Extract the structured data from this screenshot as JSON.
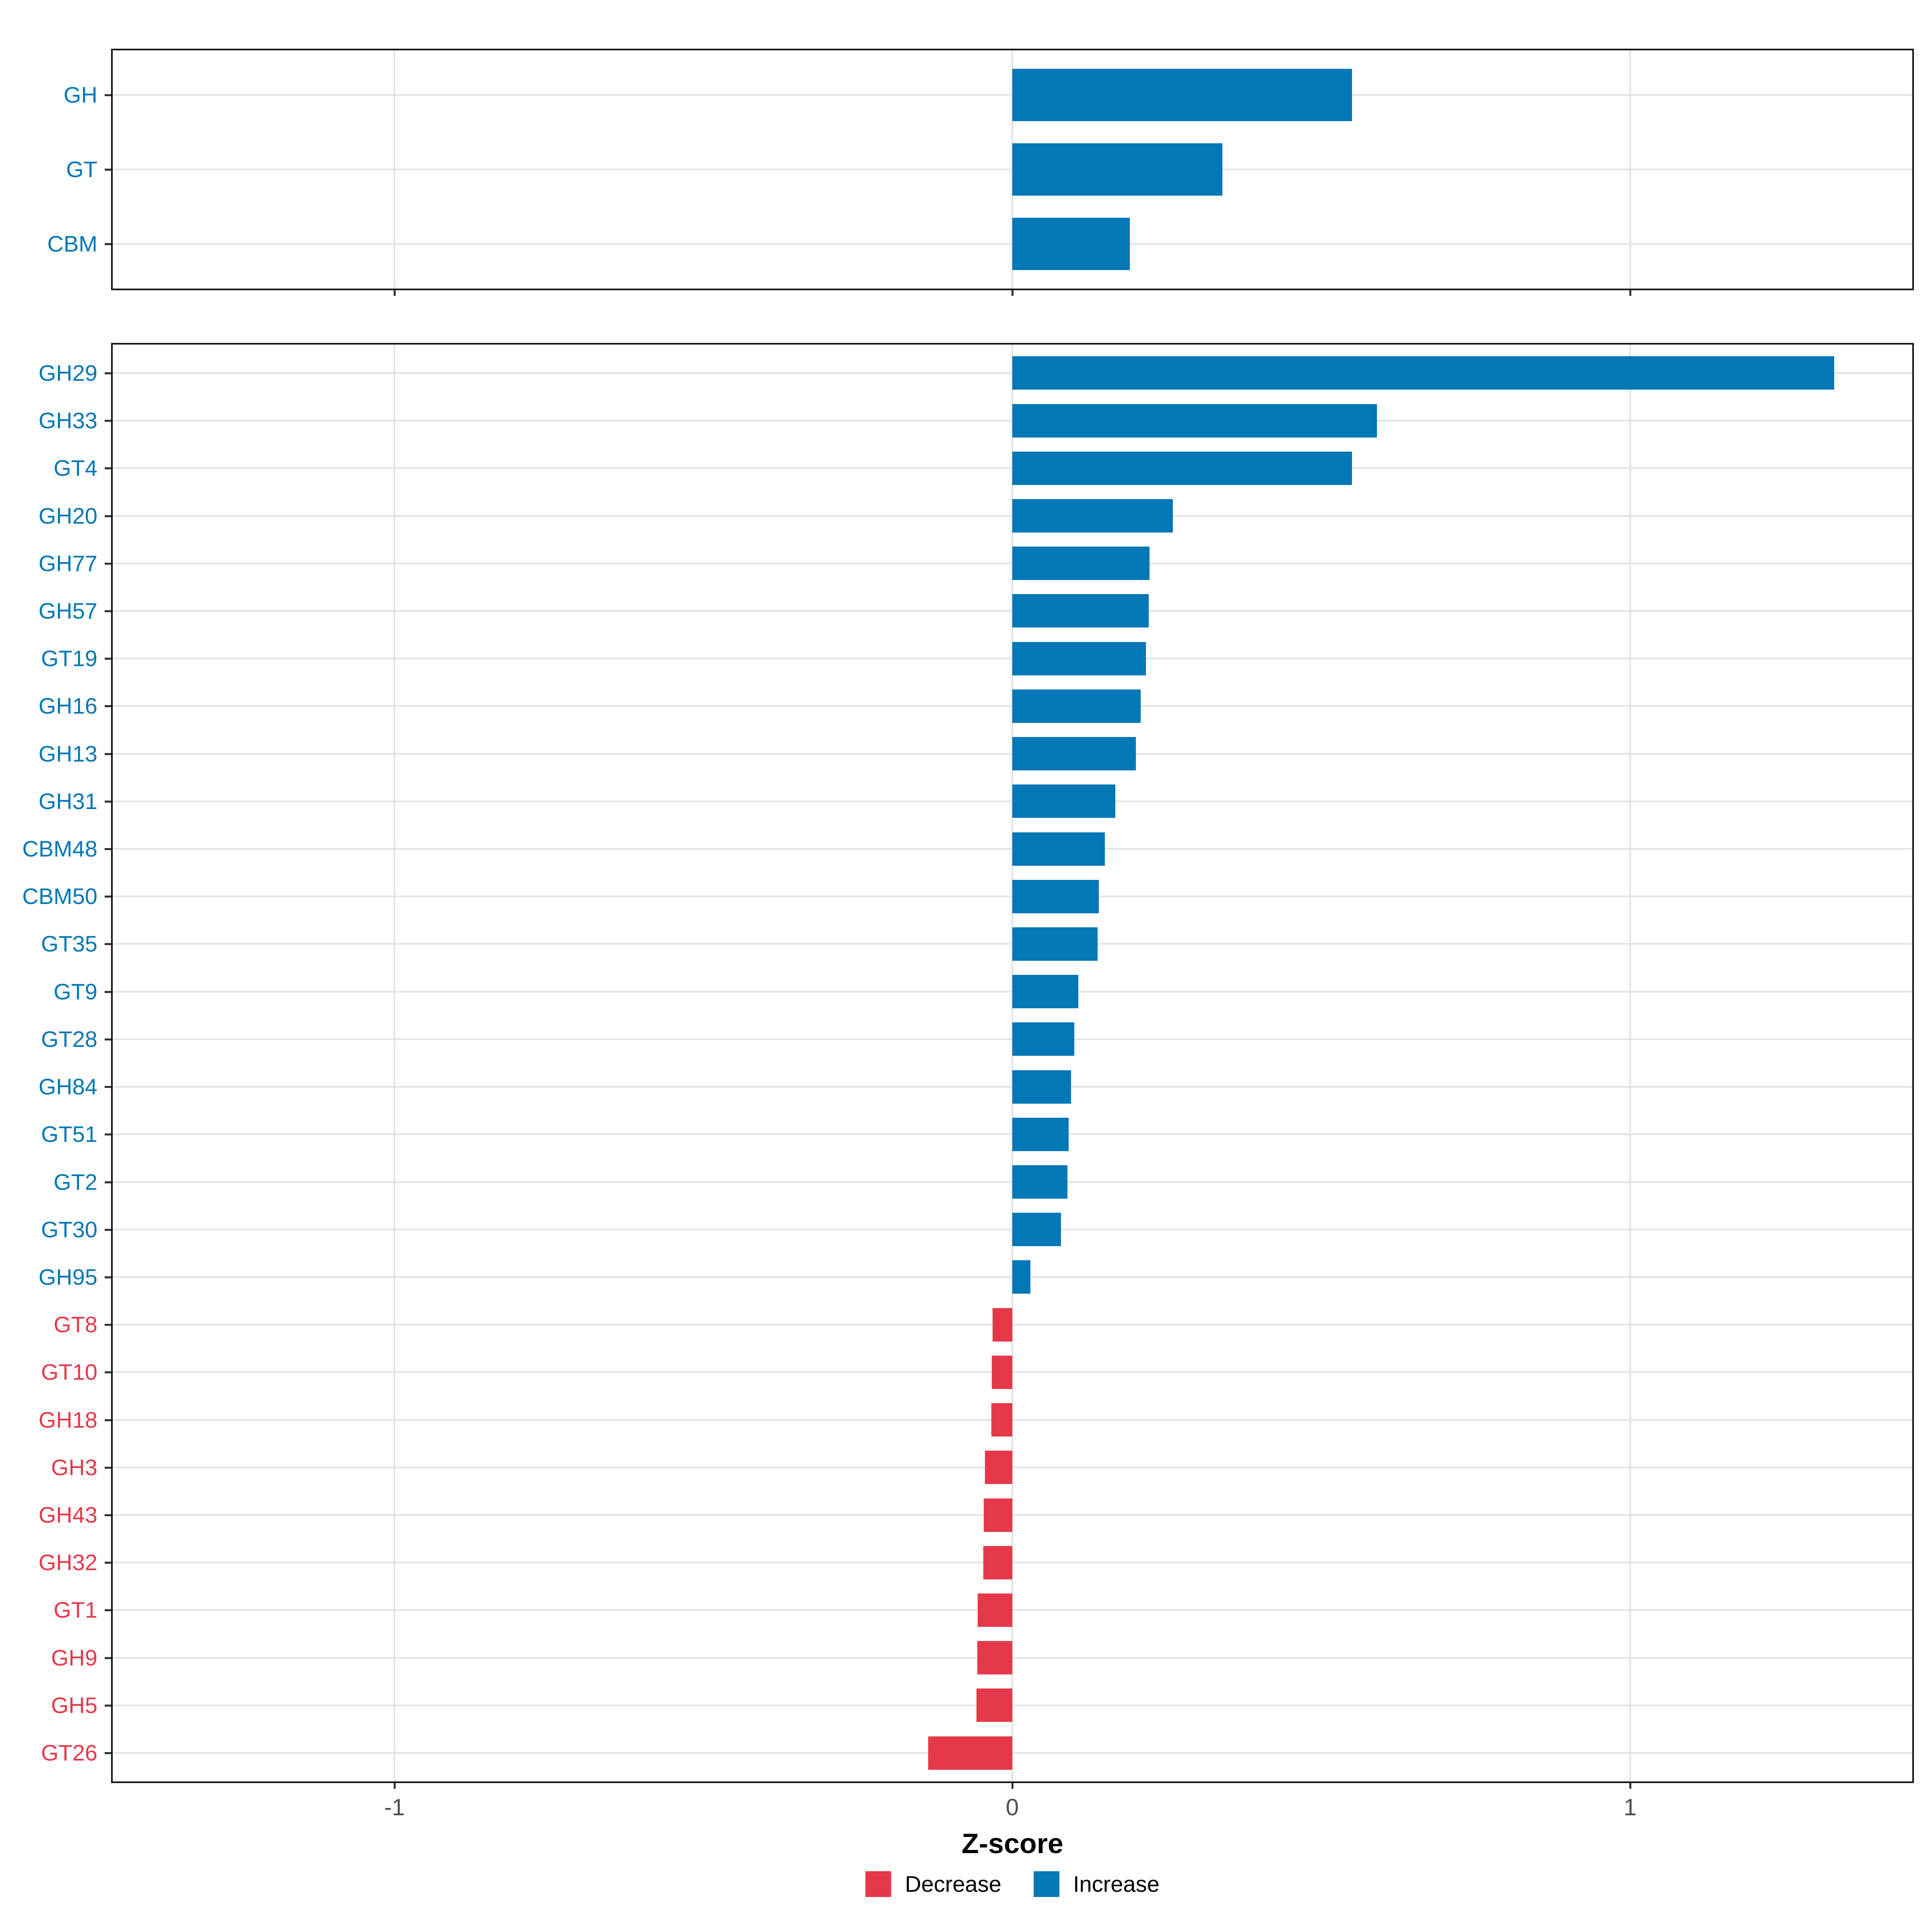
{
  "chart_data": {
    "type": "bar",
    "orientation": "horizontal",
    "xlabel": "Z-score",
    "x_ticks": [
      -1,
      0,
      1
    ],
    "x_tick_labels": [
      "-1",
      "0",
      "1"
    ],
    "xlim": [
      -1.46,
      1.46
    ],
    "grid": "major-gridlines-on",
    "legend_position": "bottom",
    "colors": {
      "increase": "#0477B6",
      "decrease": "#E5394A",
      "gridline": "#E2E2E2",
      "panel_border": "#111111",
      "axis_tick_label": "#4D4D4D"
    },
    "legend": [
      {
        "key": "decrease",
        "label": "Decrease",
        "color": "#E5394A"
      },
      {
        "key": "increase",
        "label": "Increase",
        "color": "#0477B6"
      }
    ],
    "panels": [
      {
        "name": "class-summary",
        "bars": [
          {
            "label": "GH",
            "value": 0.55,
            "direction": "increase"
          },
          {
            "label": "GT",
            "value": 0.34,
            "direction": "increase"
          },
          {
            "label": "CBM",
            "value": 0.19,
            "direction": "increase"
          }
        ]
      },
      {
        "name": "family-detail",
        "bars": [
          {
            "label": "GH29",
            "value": 1.33,
            "direction": "increase"
          },
          {
            "label": "GH33",
            "value": 0.59,
            "direction": "increase"
          },
          {
            "label": "GT4",
            "value": 0.55,
            "direction": "increase"
          },
          {
            "label": "GH20",
            "value": 0.26,
            "direction": "increase"
          },
          {
            "label": "GH77",
            "value": 0.222,
            "direction": "increase"
          },
          {
            "label": "GH57",
            "value": 0.221,
            "direction": "increase"
          },
          {
            "label": "GT19",
            "value": 0.216,
            "direction": "increase"
          },
          {
            "label": "GH16",
            "value": 0.208,
            "direction": "increase"
          },
          {
            "label": "GH13",
            "value": 0.2,
            "direction": "increase"
          },
          {
            "label": "GH31",
            "value": 0.167,
            "direction": "increase"
          },
          {
            "label": "CBM48",
            "value": 0.15,
            "direction": "increase"
          },
          {
            "label": "CBM50",
            "value": 0.14,
            "direction": "increase"
          },
          {
            "label": "GT35",
            "value": 0.138,
            "direction": "increase"
          },
          {
            "label": "GT9",
            "value": 0.107,
            "direction": "increase"
          },
          {
            "label": "GT28",
            "value": 0.1,
            "direction": "increase"
          },
          {
            "label": "GH84",
            "value": 0.095,
            "direction": "increase"
          },
          {
            "label": "GT51",
            "value": 0.091,
            "direction": "increase"
          },
          {
            "label": "GT2",
            "value": 0.089,
            "direction": "increase"
          },
          {
            "label": "GT30",
            "value": 0.079,
            "direction": "increase"
          },
          {
            "label": "GH95",
            "value": 0.029,
            "direction": "increase"
          },
          {
            "label": "GT8",
            "value": -0.032,
            "direction": "decrease"
          },
          {
            "label": "GT10",
            "value": -0.033,
            "direction": "decrease"
          },
          {
            "label": "GH18",
            "value": -0.034,
            "direction": "decrease"
          },
          {
            "label": "GH3",
            "value": -0.044,
            "direction": "decrease"
          },
          {
            "label": "GH43",
            "value": -0.046,
            "direction": "decrease"
          },
          {
            "label": "GH32",
            "value": -0.047,
            "direction": "decrease"
          },
          {
            "label": "GT1",
            "value": -0.056,
            "direction": "decrease"
          },
          {
            "label": "GH9",
            "value": -0.057,
            "direction": "decrease"
          },
          {
            "label": "GH5",
            "value": -0.058,
            "direction": "decrease"
          },
          {
            "label": "GT26",
            "value": -0.136,
            "direction": "decrease"
          }
        ]
      }
    ]
  }
}
